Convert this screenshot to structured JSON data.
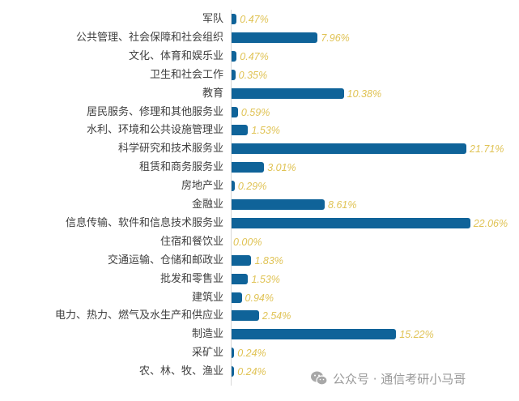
{
  "chart_data": {
    "type": "bar",
    "orientation": "horizontal",
    "title": "",
    "xlabel": "",
    "ylabel": "",
    "xlim": [
      0,
      22.06
    ],
    "grid": false,
    "legend": null,
    "bar_color": "#0f6399",
    "label_color": "#e0c355",
    "categories": [
      "军队",
      "公共管理、社会保障和社会组织",
      "文化、体育和娱乐业",
      "卫生和社会工作",
      "教育",
      "居民服务、修理和其他服务业",
      "水利、环境和公共设施管理业",
      "科学研究和技术服务业",
      "租赁和商务服务业",
      "房地产业",
      "金融业",
      "信息传输、软件和信息技术服务业",
      "住宿和餐饮业",
      "交通运输、仓储和邮政业",
      "批发和零售业",
      "建筑业",
      "电力、热力、燃气及水生产和供应业",
      "制造业",
      "采矿业",
      "农、林、牧、渔业"
    ],
    "values": [
      0.47,
      7.96,
      0.47,
      0.35,
      10.38,
      0.59,
      1.53,
      21.71,
      3.01,
      0.29,
      8.61,
      22.06,
      0.0,
      1.83,
      1.53,
      0.94,
      2.54,
      15.22,
      0.24,
      0.24
    ],
    "value_labels": [
      "0.47%",
      "7.96%",
      "0.47%",
      "0.35%",
      "10.38%",
      "0.59%",
      "1.53%",
      "21.71%",
      "3.01%",
      "0.29%",
      "8.61%",
      "22.06%",
      "0.00%",
      "1.83%",
      "1.53%",
      "0.94%",
      "2.54%",
      "15.22%",
      "0.24%",
      "0.24%"
    ]
  },
  "watermark": {
    "icon": "wechat-icon",
    "text": "公众号 · 通信考研小马哥"
  }
}
